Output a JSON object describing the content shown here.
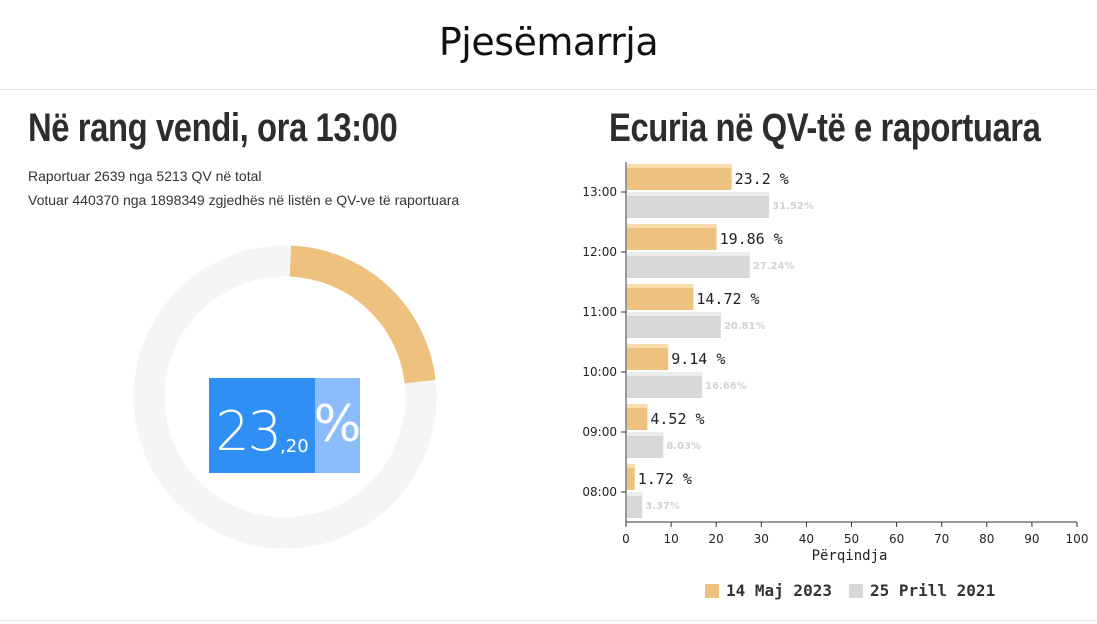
{
  "header": {
    "title": "Pjesëmarrja"
  },
  "national": {
    "heading": "Në rang vendi, ora 13:00",
    "reported_line": "Raportuar 2639 nga 5213 QV në total",
    "voted_line": "Votuar 440370 nga 1898349 zgjedhës në listën e QV-ve të raportuara",
    "percent_int": "23",
    "percent_dec": ",20",
    "percent_sign": "%",
    "percent_value": 23.2,
    "colors": {
      "arc": "#eec17e",
      "track": "#f6f5f5",
      "number_bg": "#2f8ff5",
      "sign_bg": "#8cbdfa"
    }
  },
  "trend": {
    "heading": "Ecuria në QV-të e raportuara",
    "xlabel": "Përqindja",
    "legend": [
      {
        "label": "14 Maj 2023",
        "color": "#eec17e"
      },
      {
        "label": "25 Prill 2021",
        "color": "#d8d8d8"
      }
    ]
  },
  "chart_data": {
    "type": "bar",
    "orientation": "horizontal",
    "categories": [
      "13:00",
      "12:00",
      "11:00",
      "10:00",
      "09:00",
      "08:00"
    ],
    "series": [
      {
        "name": "14 Maj 2023",
        "values": [
          23.2,
          19.86,
          14.72,
          9.14,
          4.52,
          1.72
        ],
        "labels": [
          "23.2 %",
          "19.86 %",
          "14.72 %",
          "9.14 %",
          "4.52 %",
          "1.72 %"
        ],
        "color": "#eec17e"
      },
      {
        "name": "25 Prill 2021",
        "values": [
          31.52,
          27.24,
          20.81,
          16.66,
          8.03,
          3.37
        ],
        "labels": [
          "31.52%",
          "27.24%",
          "20.81%",
          "16.66%",
          "8.03%",
          "3.37%"
        ],
        "color": "#d8d8d8"
      }
    ],
    "xlabel": "Përqindja",
    "xlim": [
      0,
      100
    ],
    "xticks": [
      0,
      10,
      20,
      30,
      40,
      50,
      60,
      70,
      80,
      90,
      100
    ],
    "grid": false,
    "legend_position": "bottom"
  }
}
